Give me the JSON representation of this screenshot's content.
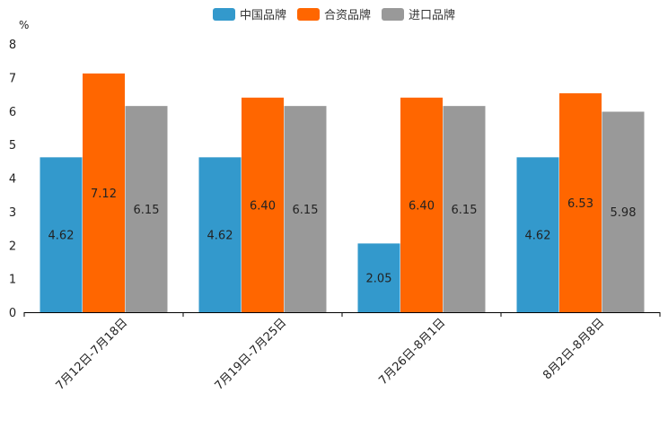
{
  "chart_data": {
    "type": "bar",
    "title": "",
    "ylabel": "%",
    "xlabel": "",
    "ylim": [
      0,
      8
    ],
    "yticks": [
      0,
      1,
      2,
      3,
      4,
      5,
      6,
      7,
      8
    ],
    "categories": [
      "7月12日-7月18日",
      "7月19日-7月25日",
      "7月26日-8月1日",
      "8月2日-8月8日"
    ],
    "series": [
      {
        "name": "中国品牌",
        "color": "#3399cc",
        "values": [
          4.62,
          4.62,
          2.05,
          4.62
        ],
        "labels": [
          "4.62",
          "4.62",
          "2.05",
          "4.62"
        ]
      },
      {
        "name": "合资品牌",
        "color": "#ff6600",
        "values": [
          7.12,
          6.4,
          6.4,
          6.53
        ],
        "labels": [
          "7.12",
          "6.40",
          "6.40",
          "6.53"
        ]
      },
      {
        "name": "进口品牌",
        "color": "#999999",
        "values": [
          6.15,
          6.15,
          6.15,
          5.98
        ],
        "labels": [
          "6.15",
          "6.15",
          "6.15",
          "5.98"
        ]
      }
    ],
    "legend_position": "top-center",
    "grid": false
  }
}
